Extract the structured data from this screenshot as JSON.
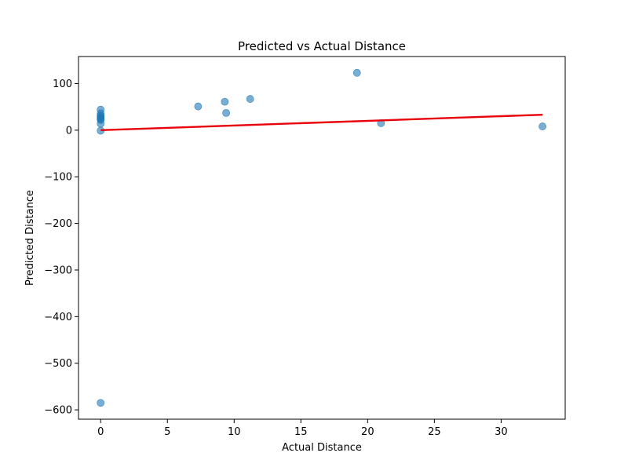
{
  "chart_data": {
    "type": "scatter",
    "title": "Predicted vs Actual Distance",
    "xlabel": "Actual Distance",
    "ylabel": "Predicted Distance",
    "xlim": [
      -1.66,
      34.8
    ],
    "ylim": [
      -620,
      158
    ],
    "xticks": [
      0,
      5,
      10,
      15,
      20,
      25,
      30
    ],
    "xtick_labels": [
      "0",
      "5",
      "10",
      "15",
      "20",
      "25",
      "30"
    ],
    "yticks": [
      100,
      0,
      -100,
      -200,
      -300,
      -400,
      -500,
      -600
    ],
    "ytick_labels": [
      "100",
      "0",
      "−100",
      "−200",
      "−300",
      "−400",
      "−500",
      "−600"
    ],
    "grid": false,
    "point_color": "#1f77b4",
    "point_alpha": 0.6,
    "line_color": "#e8000b",
    "points": [
      {
        "x": 0,
        "y": 44
      },
      {
        "x": 0,
        "y": 36
      },
      {
        "x": 0,
        "y": 31
      },
      {
        "x": 0,
        "y": 29
      },
      {
        "x": 0,
        "y": 26
      },
      {
        "x": 0,
        "y": 24
      },
      {
        "x": 0,
        "y": 22
      },
      {
        "x": 0,
        "y": 14
      },
      {
        "x": 0,
        "y": -1
      },
      {
        "x": 0,
        "y": -585
      },
      {
        "x": 7.3,
        "y": 51
      },
      {
        "x": 9.3,
        "y": 61
      },
      {
        "x": 9.4,
        "y": 37
      },
      {
        "x": 11.2,
        "y": 67
      },
      {
        "x": 19.2,
        "y": 123
      },
      {
        "x": 21.0,
        "y": 15
      },
      {
        "x": 33.1,
        "y": 8
      }
    ],
    "reference_line": {
      "x": [
        0,
        33.1
      ],
      "y": [
        0,
        33.1
      ]
    }
  }
}
